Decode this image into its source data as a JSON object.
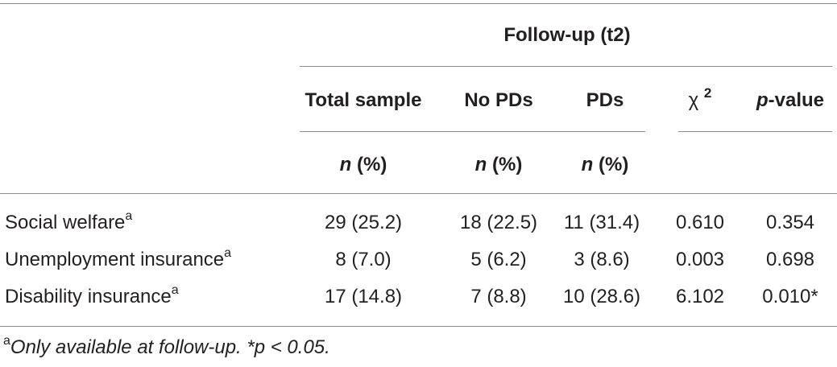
{
  "header": {
    "group_label": "Follow-up (t2)",
    "columns": [
      "Total sample",
      "No PDs",
      "PDs"
    ],
    "chi_symbol": "χ",
    "chi_exp": "2",
    "p_italic": "p",
    "p_rest": "-value",
    "n_italic": "n",
    "n_rest": " (%)"
  },
  "rows": [
    {
      "label": "Social welfare",
      "sup": "a",
      "total": "29 (25.2)",
      "no_pds": "18 (22.5)",
      "pds": "11 (31.4)",
      "chi2": "0.610",
      "p": "0.354"
    },
    {
      "label": "Unemployment insurance",
      "sup": "a",
      "total": "8 (7.0)",
      "no_pds": "5 (6.2)",
      "pds": "3 (8.6)",
      "chi2": "0.003",
      "p": "0.698"
    },
    {
      "label": "Disability insurance",
      "sup": "a",
      "total": "17 (14.8)",
      "no_pds": "7 (8.8)",
      "pds": "10 (28.6)",
      "chi2": "6.102",
      "p": "0.010*"
    }
  ],
  "footnote": {
    "marker": "a",
    "text": "Only available at follow-up. *p < 0.05."
  }
}
